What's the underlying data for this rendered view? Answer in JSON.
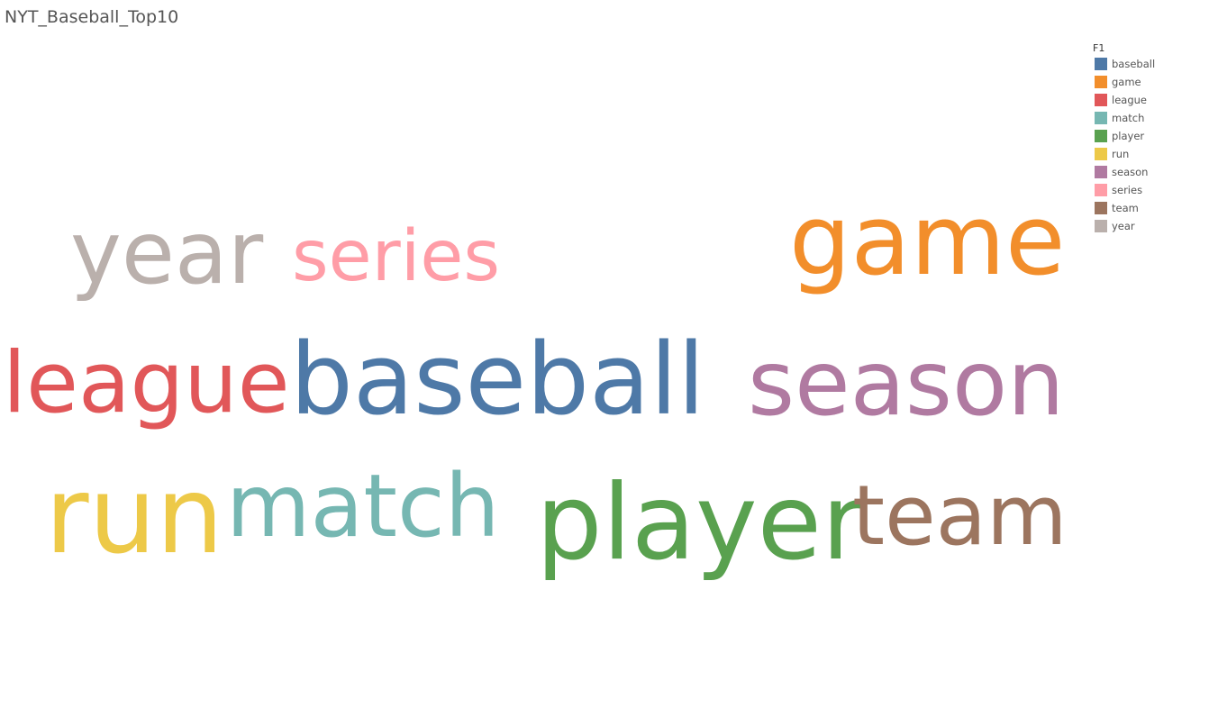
{
  "sheet": {
    "title": "NYT_Baseball_Top10"
  },
  "chart_data": {
    "type": "word-cloud",
    "title": "NYT_Baseball_Top10",
    "legend": {
      "title": "F1",
      "placement": "top-right"
    },
    "words": [
      {
        "text": "baseball",
        "color": "#4e79a7"
      },
      {
        "text": "game",
        "color": "#f28e2b"
      },
      {
        "text": "league",
        "color": "#e15759"
      },
      {
        "text": "match",
        "color": "#76b7b2"
      },
      {
        "text": "player",
        "color": "#59a14f"
      },
      {
        "text": "run",
        "color": "#edc948"
      },
      {
        "text": "season",
        "color": "#b07aa1"
      },
      {
        "text": "series",
        "color": "#ff9da7"
      },
      {
        "text": "team",
        "color": "#9c755f"
      },
      {
        "text": "year",
        "color": "#bab0ac"
      }
    ]
  }
}
